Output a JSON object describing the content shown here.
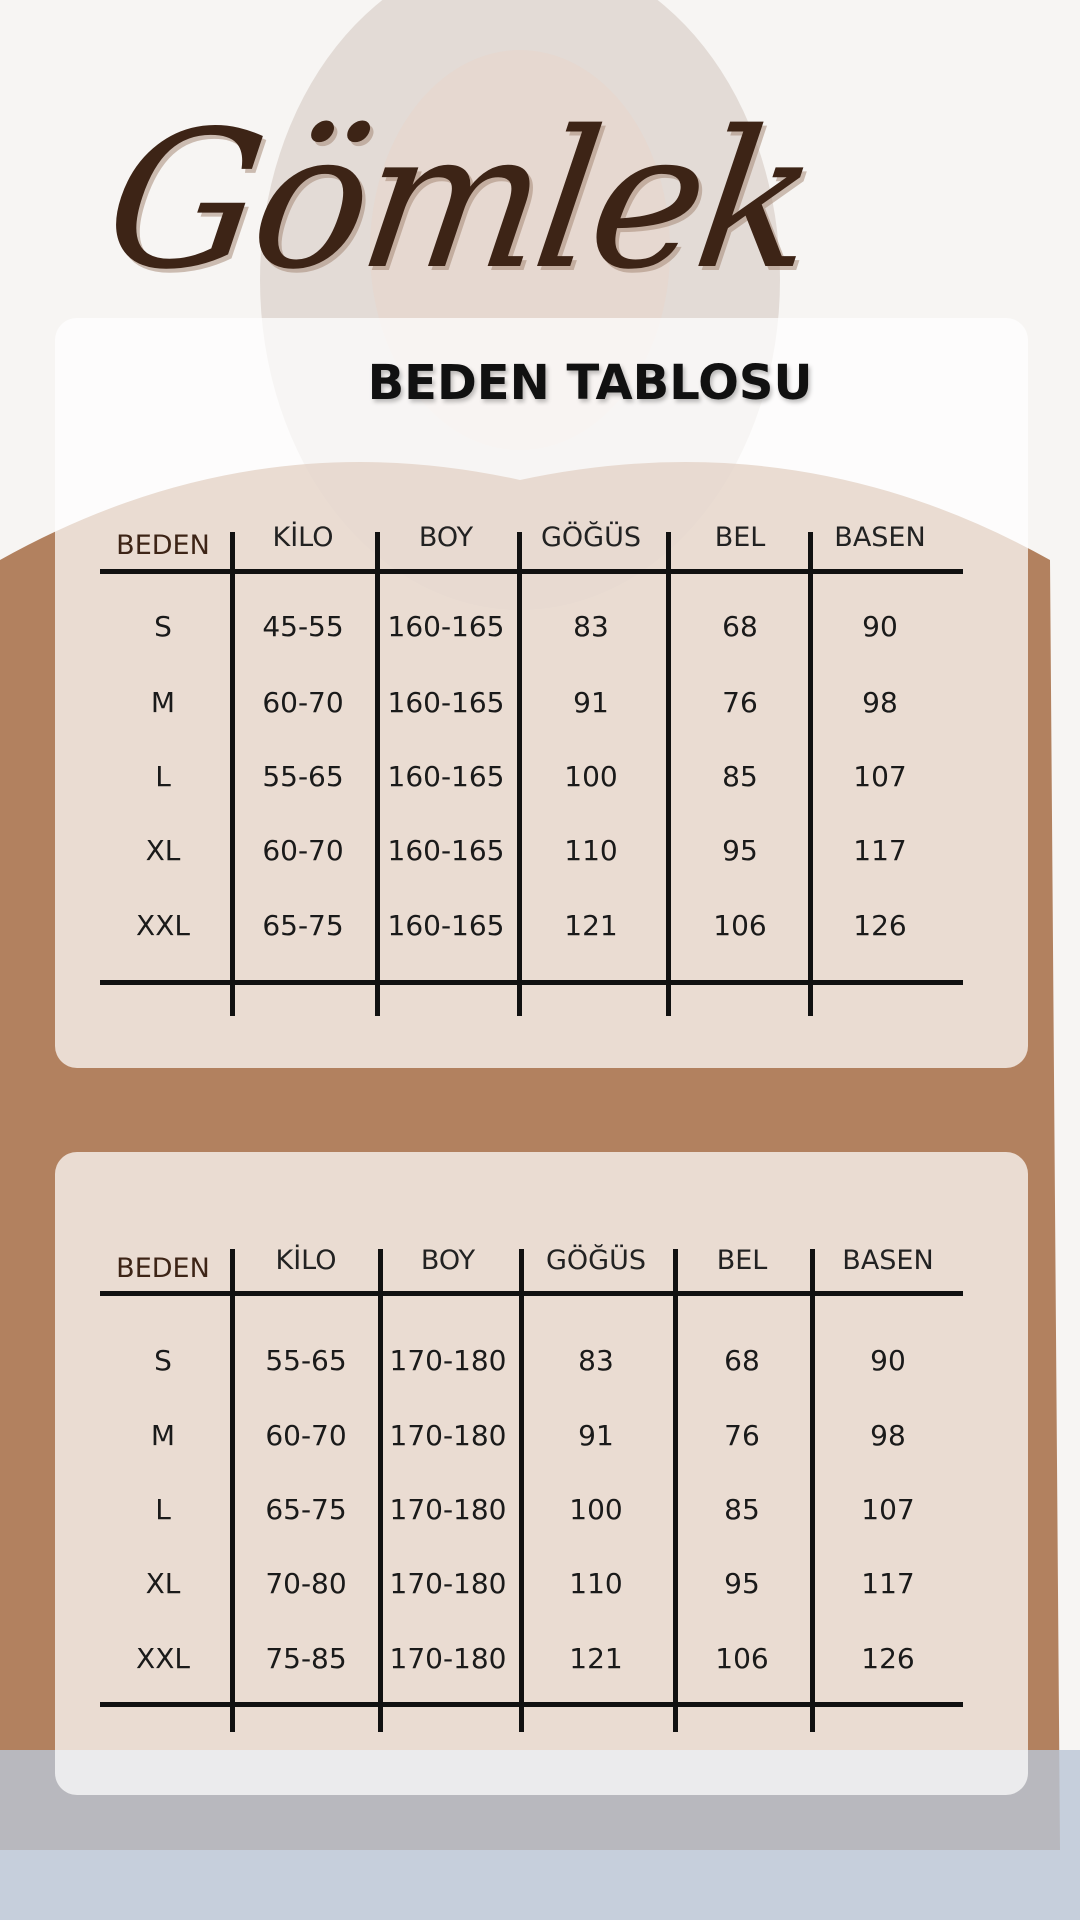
{
  "title": "Gömlek",
  "subtitle": "BEDEN TABLOSU",
  "colors": {
    "title": "#3d2416",
    "text": "#111111"
  },
  "tables": [
    {
      "headers": [
        "BEDEN",
        "KİLO",
        "BOY",
        "GÖĞÜS",
        "BEL",
        "BASEN"
      ],
      "rows": [
        [
          "S",
          "45-55",
          "160-165",
          "83",
          "68",
          "90"
        ],
        [
          "M",
          "60-70",
          "160-165",
          "91",
          "76",
          "98"
        ],
        [
          "L",
          "55-65",
          "160-165",
          "100",
          "85",
          "107"
        ],
        [
          "XL",
          "60-70",
          "160-165",
          "110",
          "95",
          "117"
        ],
        [
          "XXL",
          "65-75",
          "160-165",
          "121",
          "106",
          "126"
        ]
      ]
    },
    {
      "headers": [
        "BEDEN",
        "KİLO",
        "BOY",
        "GÖĞÜS",
        "BEL",
        "BASEN"
      ],
      "rows": [
        [
          "S",
          "55-65",
          "170-180",
          "83",
          "68",
          "90"
        ],
        [
          "M",
          "60-70",
          "170-180",
          "91",
          "76",
          "98"
        ],
        [
          "L",
          "65-75",
          "170-180",
          "100",
          "85",
          "107"
        ],
        [
          "XL",
          "70-80",
          "170-180",
          "110",
          "95",
          "117"
        ],
        [
          "XXL",
          "75-85",
          "170-180",
          "121",
          "106",
          "126"
        ]
      ]
    }
  ]
}
